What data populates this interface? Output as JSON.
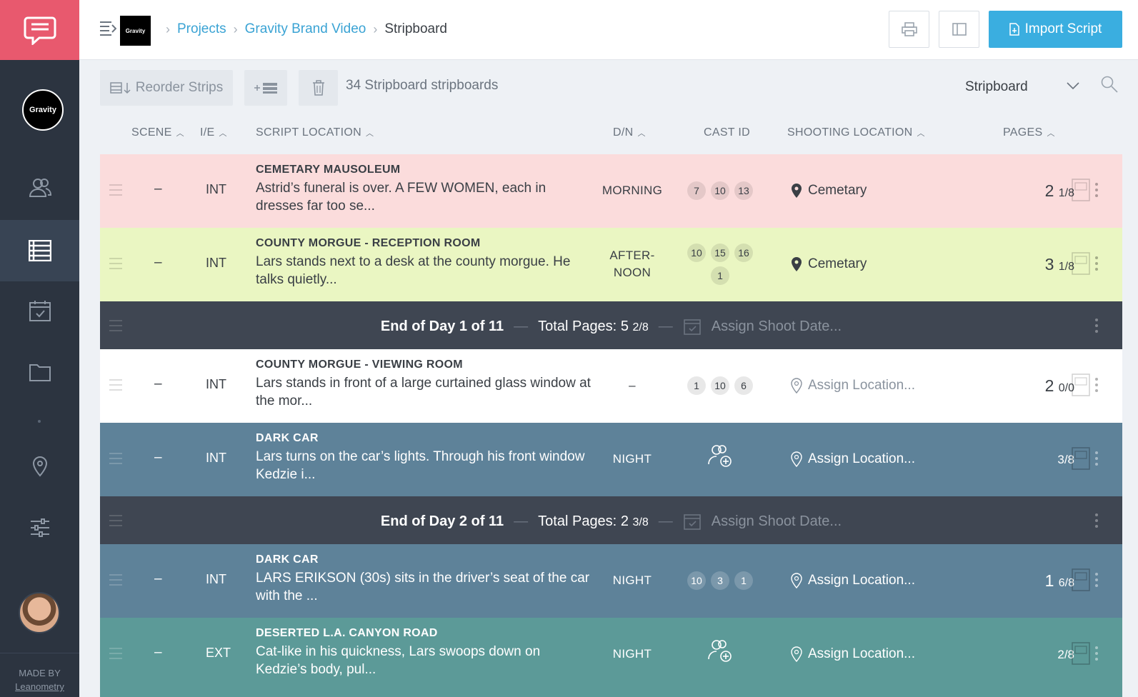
{
  "sidebar": {
    "project_label": "Gravity",
    "made_by": "MADE BY",
    "brand": "Leanometry"
  },
  "header": {
    "thumb_label": "Gravity",
    "breadcrumbs": [
      "Projects",
      "Gravity Brand Video",
      "Stripboard"
    ],
    "import_label": "Import Script"
  },
  "toolbar": {
    "reorder_label": "Reorder Strips",
    "count_text": "34 Stripboard stripboards",
    "view_select": "Stripboard"
  },
  "columns": {
    "scene": "SCENE",
    "ie": "I/E",
    "script_location": "SCRIPT LOCATION",
    "dn": "D/N",
    "cast_id": "CAST ID",
    "shooting_location": "SHOOTING LOCATION",
    "pages": "PAGES"
  },
  "strips": [
    {
      "scene": "–",
      "ie": "INT",
      "heading": "CEMETARY MAUSOLEUM",
      "desc": "Astrid’s funeral is over. A FEW WOMEN, each in dresses far too se...",
      "dn": "MORNING",
      "cast": [
        "7",
        "10",
        "13"
      ],
      "shoot": "Cemetary",
      "pages_whole": "2",
      "pages_frac": "1/8",
      "color": "#fbdcdc"
    },
    {
      "scene": "–",
      "ie": "INT",
      "heading": "COUNTY MORGUE - RECEPTION ROOM",
      "desc": "Lars stands next to a desk at the county morgue. He talks quietly...",
      "dn_line1": "AFTER-",
      "dn_line2": "NOON",
      "cast": [
        "10",
        "15",
        "16",
        "1"
      ],
      "shoot": "Cemetary",
      "pages_whole": "3",
      "pages_frac": "1/8",
      "color": "#eaf6c2"
    },
    {
      "scene": "–",
      "ie": "INT",
      "heading": "COUNTY MORGUE - VIEWING ROOM",
      "desc": "Lars stands in front of a large curtained glass window at the mor...",
      "dn": "–",
      "cast": [
        "1",
        "10",
        "6"
      ],
      "shoot": "Assign Location...",
      "pages_whole": "2",
      "pages_frac": "0/0",
      "color": "#ffffff"
    },
    {
      "scene": "–",
      "ie": "INT",
      "heading": "DARK CAR",
      "desc": "Lars turns on the car’s lights. Through his front window Kedzie i...",
      "dn": "NIGHT",
      "shoot": "Assign Location...",
      "pages_frac": "3/8",
      "color": "#5e8299"
    },
    {
      "scene": "–",
      "ie": "INT",
      "heading": "DARK CAR",
      "desc": "LARS ERIKSON (30s) sits in the driver’s seat of the car with the ...",
      "dn": "NIGHT",
      "cast": [
        "10",
        "3",
        "1"
      ],
      "shoot": "Assign Location...",
      "pages_whole": "1",
      "pages_frac": "6/8",
      "color": "#5e8299"
    },
    {
      "scene": "–",
      "ie": "EXT",
      "heading": "DESERTED L.A. CANYON ROAD",
      "desc": "Cat-like in his quickness, Lars swoops down on Kedzie’s body, pul...",
      "dn": "NIGHT",
      "shoot": "Assign Location...",
      "pages_frac": "2/8",
      "color": "#5c9a98"
    }
  ],
  "days": [
    {
      "label": "End of Day 1 of 11",
      "total_label": "Total Pages:",
      "total_whole": "5",
      "total_frac": "2/8",
      "assign": "Assign Shoot Date..."
    },
    {
      "label": "End of Day 2 of 11",
      "total_label": "Total Pages:",
      "total_whole": "2",
      "total_frac": "3/8",
      "assign": "Assign Shoot Date..."
    }
  ],
  "colors": {
    "brand_red": "#e8596e",
    "sidebar": "#2c3440",
    "accent_blue": "#3aaee0",
    "day_row": "#3f4652"
  },
  "icons": [
    "chat-logo-icon",
    "users-icon",
    "stripboard-icon",
    "calendar-icon",
    "folder-icon",
    "location-pin-icon",
    "sliders-icon",
    "menu-icon",
    "print-icon",
    "panel-icon",
    "search-icon",
    "trash-icon",
    "add-strip-icon",
    "reorder-icon",
    "sheet-icon",
    "add-cast-icon"
  ]
}
